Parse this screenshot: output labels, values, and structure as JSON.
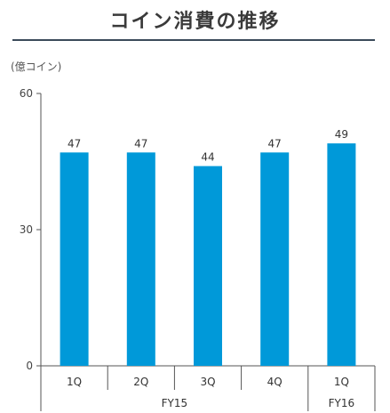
{
  "title": "コイン消費の推移",
  "unit_label": "(億コイン)",
  "colors": {
    "bar": "#0099d9",
    "axis": "#555555"
  },
  "chart_data": {
    "type": "bar",
    "title": "コイン消費の推移",
    "ylabel": "(億コイン)",
    "categories": [
      "1Q",
      "2Q",
      "3Q",
      "4Q",
      "1Q"
    ],
    "groups": [
      {
        "label": "FY15",
        "categories": [
          "1Q",
          "2Q",
          "3Q",
          "4Q"
        ]
      },
      {
        "label": "FY16",
        "categories": [
          "1Q"
        ]
      }
    ],
    "values": [
      47,
      47,
      44,
      47,
      49
    ],
    "data_labels": [
      "47",
      "47",
      "44",
      "47",
      "49"
    ],
    "y_ticks": [
      0,
      30,
      60
    ],
    "ylim": [
      0,
      60
    ],
    "grid": false,
    "legend": "none"
  }
}
